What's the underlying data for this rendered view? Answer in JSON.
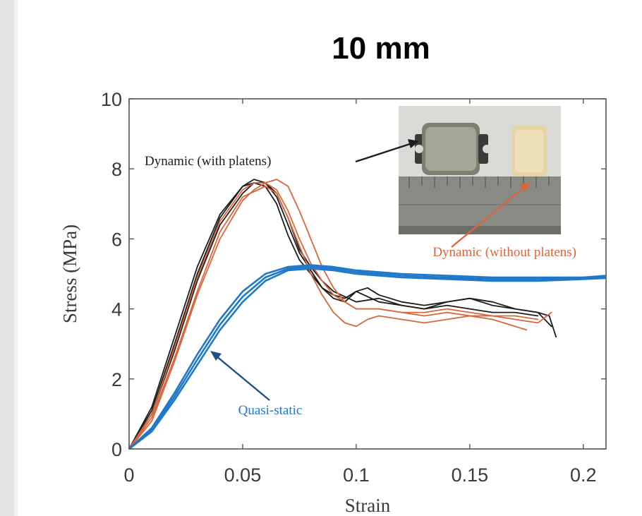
{
  "header": {
    "title": "10 mm"
  },
  "chart_data": {
    "type": "line",
    "title": "10 mm",
    "xlabel": "Strain",
    "ylabel": "Stress (MPa)",
    "xlim": [
      0,
      0.21
    ],
    "ylim": [
      0,
      10
    ],
    "xticks": [
      0,
      0.05,
      0.1,
      0.15,
      0.2
    ],
    "xtick_labels": [
      "0",
      "0.05",
      "0.1",
      "0.15",
      "0.2"
    ],
    "yticks": [
      0,
      2,
      4,
      6,
      8,
      10
    ],
    "ytick_labels": [
      "0",
      "2",
      "4",
      "6",
      "8",
      "10"
    ],
    "grid": false,
    "colors": {
      "black": "#1c1c1c",
      "orange": "#d9663a",
      "blue": "#1f78c8",
      "axis": "#555555"
    },
    "series": [
      {
        "group": "Dynamic (with platens)",
        "color": "#1c1c1c",
        "x": [
          0,
          0.01,
          0.02,
          0.03,
          0.04,
          0.05,
          0.055,
          0.06,
          0.065,
          0.07,
          0.075,
          0.08,
          0.085,
          0.09,
          0.095,
          0.1,
          0.11,
          0.12,
          0.13,
          0.14,
          0.15,
          0.16,
          0.17,
          0.18,
          0.185,
          0.188
        ],
        "y": [
          0,
          1.2,
          3.2,
          5.2,
          6.7,
          7.5,
          7.6,
          7.5,
          7.0,
          6.1,
          5.4,
          5.0,
          4.6,
          4.4,
          4.3,
          4.5,
          4.2,
          4.1,
          4.0,
          4.2,
          4.3,
          4.1,
          4.0,
          3.9,
          3.8,
          3.2
        ]
      },
      {
        "group": "Dynamic (with platens)",
        "color": "#1c1c1c",
        "x": [
          0,
          0.01,
          0.02,
          0.03,
          0.04,
          0.05,
          0.055,
          0.06,
          0.065,
          0.07,
          0.075,
          0.08,
          0.085,
          0.09,
          0.095,
          0.1,
          0.105,
          0.11,
          0.12,
          0.13,
          0.14,
          0.15,
          0.16,
          0.17,
          0.18,
          0.186
        ],
        "y": [
          0,
          1.1,
          3.0,
          5.0,
          6.6,
          7.5,
          7.7,
          7.6,
          7.2,
          6.4,
          5.6,
          5.1,
          4.6,
          4.3,
          4.2,
          4.5,
          4.6,
          4.4,
          4.2,
          4.1,
          4.2,
          4.3,
          4.2,
          4.0,
          3.9,
          3.5
        ]
      },
      {
        "group": "Dynamic (with platens)",
        "color": "#1c1c1c",
        "x": [
          0,
          0.01,
          0.02,
          0.03,
          0.04,
          0.05,
          0.055,
          0.06,
          0.065,
          0.07,
          0.075,
          0.08,
          0.085,
          0.09,
          0.1,
          0.11,
          0.12,
          0.13,
          0.14,
          0.15,
          0.16,
          0.17,
          0.18
        ],
        "y": [
          0,
          1.0,
          2.8,
          4.8,
          6.4,
          7.3,
          7.6,
          7.6,
          7.3,
          6.6,
          5.7,
          5.2,
          4.8,
          4.5,
          4.2,
          4.3,
          4.1,
          4.0,
          4.1,
          4.0,
          3.9,
          3.9,
          3.8
        ]
      },
      {
        "group": "Dynamic (without platens)",
        "color": "#d9663a",
        "x": [
          0,
          0.01,
          0.02,
          0.03,
          0.04,
          0.05,
          0.06,
          0.065,
          0.07,
          0.075,
          0.08,
          0.085,
          0.09,
          0.095,
          0.1,
          0.105,
          0.11,
          0.12,
          0.13,
          0.14,
          0.15,
          0.16,
          0.17,
          0.175
        ],
        "y": [
          0,
          0.9,
          2.6,
          4.5,
          6.2,
          7.2,
          7.5,
          7.3,
          6.6,
          5.8,
          5.0,
          4.4,
          3.9,
          3.6,
          3.5,
          3.7,
          3.8,
          3.7,
          3.6,
          3.7,
          3.8,
          3.7,
          3.5,
          3.4
        ]
      },
      {
        "group": "Dynamic (without platens)",
        "color": "#d9663a",
        "x": [
          0,
          0.01,
          0.02,
          0.03,
          0.04,
          0.05,
          0.055,
          0.06,
          0.065,
          0.07,
          0.075,
          0.08,
          0.085,
          0.09,
          0.095,
          0.1,
          0.11,
          0.12,
          0.13,
          0.14,
          0.15,
          0.16,
          0.17,
          0.18,
          0.186
        ],
        "y": [
          0,
          0.8,
          2.5,
          4.4,
          6.0,
          7.1,
          7.4,
          7.6,
          7.7,
          7.5,
          6.8,
          6.0,
          5.2,
          4.6,
          4.2,
          4.0,
          4.0,
          3.9,
          3.8,
          3.9,
          3.8,
          3.8,
          3.7,
          3.6,
          3.9
        ]
      },
      {
        "group": "Dynamic (without platens)",
        "color": "#d9663a",
        "x": [
          0,
          0.01,
          0.02,
          0.03,
          0.04,
          0.05,
          0.055,
          0.06,
          0.065,
          0.07,
          0.075,
          0.08,
          0.085,
          0.09,
          0.1,
          0.11,
          0.12,
          0.13,
          0.14,
          0.15,
          0.16,
          0.17,
          0.18
        ],
        "y": [
          0,
          1.0,
          2.9,
          4.9,
          6.5,
          7.4,
          7.6,
          7.6,
          7.4,
          6.8,
          6.0,
          5.3,
          4.8,
          4.4,
          4.0,
          4.0,
          3.9,
          3.9,
          4.0,
          3.9,
          3.8,
          3.8,
          3.7
        ]
      },
      {
        "group": "Quasi-static",
        "color": "#1f78c8",
        "x": [
          0,
          0.01,
          0.02,
          0.03,
          0.04,
          0.05,
          0.06,
          0.07,
          0.08,
          0.09,
          0.1,
          0.12,
          0.14,
          0.16,
          0.18,
          0.2,
          0.21
        ],
        "y": [
          0,
          0.6,
          1.6,
          2.7,
          3.7,
          4.5,
          5.0,
          5.2,
          5.25,
          5.2,
          5.1,
          5.0,
          4.95,
          4.9,
          4.9,
          4.9,
          4.95
        ]
      },
      {
        "group": "Quasi-static",
        "color": "#1f78c8",
        "x": [
          0,
          0.01,
          0.02,
          0.03,
          0.04,
          0.05,
          0.06,
          0.07,
          0.08,
          0.09,
          0.1,
          0.12,
          0.14,
          0.16,
          0.18,
          0.2,
          0.21
        ],
        "y": [
          0,
          0.55,
          1.5,
          2.55,
          3.55,
          4.35,
          4.9,
          5.15,
          5.2,
          5.15,
          5.05,
          4.95,
          4.9,
          4.85,
          4.85,
          4.88,
          4.9
        ]
      },
      {
        "group": "Quasi-static",
        "color": "#1f78c8",
        "x": [
          0,
          0.01,
          0.02,
          0.03,
          0.04,
          0.05,
          0.06,
          0.07,
          0.08,
          0.09,
          0.1,
          0.12,
          0.14,
          0.16,
          0.18,
          0.2,
          0.21
        ],
        "y": [
          0,
          0.5,
          1.4,
          2.4,
          3.4,
          4.2,
          4.8,
          5.1,
          5.15,
          5.1,
          5.0,
          4.9,
          4.85,
          4.8,
          4.8,
          4.85,
          4.88
        ]
      }
    ],
    "annotations": [
      {
        "text": "Dynamic (with platens)",
        "color": "#1c1c1c"
      },
      {
        "text": "Dynamic (without platens)",
        "color": "#d9663a"
      },
      {
        "text": "Quasi-static",
        "color": "#1f78c8"
      }
    ]
  }
}
